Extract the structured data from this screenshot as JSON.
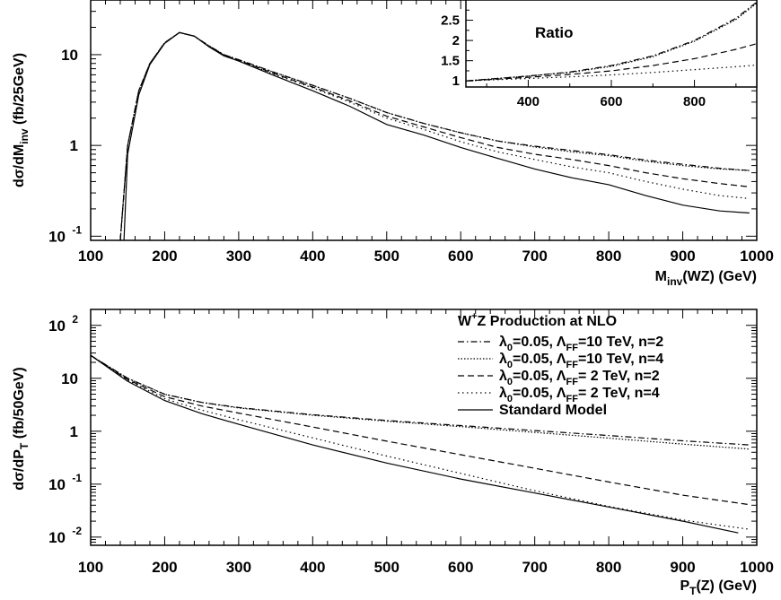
{
  "chart_data": [
    {
      "type": "line",
      "scale": {
        "x": "linear",
        "y": "log"
      },
      "xlim": [
        100,
        1000
      ],
      "ylim": [
        0.09,
        40
      ],
      "xlabel": "M_inv(WZ)  (GeV)",
      "ylabel": "dσ/dM_inv  (fb/25GeV)",
      "xlabel_parts": {
        "main": "M",
        "sub": "inv",
        "rest": "(WZ)  (GeV)"
      },
      "ylabel_parts": {
        "main": "dσ/dM",
        "sub": "inv",
        "rest": "  (fb/25GeV)"
      },
      "x_ticks": [
        "100",
        "200",
        "300",
        "400",
        "500",
        "600",
        "700",
        "800",
        "900",
        "1000"
      ],
      "y_ticks": [
        {
          "value": 0.1,
          "base": "10",
          "exp": "-1"
        },
        {
          "value": 1,
          "base": "1",
          "exp": ""
        },
        {
          "value": 10,
          "base": "10",
          "exp": ""
        }
      ],
      "series": [
        {
          "style": "dashdot",
          "x": [
            140,
            150,
            165,
            180,
            200,
            220,
            240,
            260,
            280,
            300,
            350,
            400,
            450,
            500,
            550,
            600,
            650,
            700,
            750,
            800,
            850,
            900,
            950,
            990
          ],
          "y": [
            0.09,
            1.0,
            4.0,
            8.0,
            13.5,
            17.5,
            16.0,
            12.5,
            10.0,
            8.8,
            6.3,
            4.6,
            3.3,
            2.3,
            1.75,
            1.38,
            1.12,
            0.98,
            0.88,
            0.79,
            0.69,
            0.62,
            0.56,
            0.53
          ]
        },
        {
          "style": "dotted",
          "x": [
            140,
            150,
            165,
            180,
            200,
            220,
            240,
            260,
            280,
            300,
            350,
            400,
            450,
            500,
            550,
            600,
            650,
            700,
            750,
            800,
            850,
            900,
            950,
            990
          ],
          "y": [
            0.09,
            1.0,
            4.0,
            8.0,
            13.5,
            17.5,
            16.0,
            12.5,
            10.0,
            8.8,
            6.3,
            4.6,
            3.3,
            2.3,
            1.75,
            1.38,
            1.12,
            0.96,
            0.85,
            0.77,
            0.67,
            0.6,
            0.55,
            0.53
          ]
        },
        {
          "style": "dashed",
          "x": [
            140,
            150,
            165,
            180,
            200,
            220,
            240,
            260,
            280,
            300,
            350,
            400,
            450,
            500,
            550,
            600,
            650,
            700,
            750,
            800,
            850,
            900,
            950,
            990
          ],
          "y": [
            0.09,
            1.0,
            4.0,
            8.0,
            13.5,
            17.5,
            16.0,
            12.4,
            9.9,
            8.7,
            6.1,
            4.4,
            3.1,
            2.1,
            1.6,
            1.22,
            0.95,
            0.8,
            0.7,
            0.6,
            0.5,
            0.43,
            0.38,
            0.35
          ]
        },
        {
          "style": "sparse-dotted",
          "x": [
            140,
            150,
            165,
            180,
            200,
            220,
            240,
            260,
            280,
            300,
            350,
            400,
            450,
            500,
            550,
            600,
            650,
            700,
            750,
            800,
            850,
            900,
            950,
            990
          ],
          "y": [
            0.09,
            1.0,
            4.0,
            8.0,
            13.5,
            17.5,
            16.0,
            12.3,
            9.8,
            8.6,
            6.0,
            4.3,
            3.0,
            2.0,
            1.5,
            1.1,
            0.85,
            0.7,
            0.58,
            0.5,
            0.4,
            0.33,
            0.28,
            0.26
          ]
        },
        {
          "style": "solid",
          "x": [
            145,
            150,
            165,
            180,
            200,
            220,
            240,
            260,
            280,
            300,
            350,
            400,
            450,
            500,
            550,
            600,
            650,
            700,
            750,
            800,
            850,
            900,
            950,
            990
          ],
          "y": [
            0.09,
            0.8,
            3.6,
            7.8,
            13.3,
            17.5,
            16.0,
            12.2,
            9.7,
            8.5,
            5.8,
            4.0,
            2.7,
            1.7,
            1.3,
            0.95,
            0.72,
            0.55,
            0.44,
            0.37,
            0.28,
            0.22,
            0.19,
            0.18
          ]
        }
      ]
    },
    {
      "type": "line",
      "role": "inset",
      "title": "Ratio",
      "scale": {
        "x": "linear",
        "y": "linear"
      },
      "xlim": [
        250,
        950
      ],
      "ylim": [
        0.85,
        3.0
      ],
      "x_ticks": [
        "400",
        "600",
        "800"
      ],
      "y_ticks": [
        "1",
        "1.5",
        "2",
        "2.5"
      ],
      "series": [
        {
          "style": "dashdot",
          "x": [
            250,
            300,
            400,
            500,
            600,
            700,
            800,
            900,
            950
          ],
          "y": [
            1.0,
            1.04,
            1.12,
            1.22,
            1.38,
            1.62,
            2.0,
            2.55,
            2.95
          ]
        },
        {
          "style": "dotted",
          "x": [
            250,
            300,
            400,
            500,
            600,
            700,
            800,
            900,
            950
          ],
          "y": [
            1.0,
            1.04,
            1.12,
            1.21,
            1.36,
            1.6,
            1.98,
            2.52,
            2.92
          ]
        },
        {
          "style": "dashed",
          "x": [
            250,
            300,
            400,
            500,
            600,
            700,
            800,
            900,
            950
          ],
          "y": [
            1.0,
            1.03,
            1.09,
            1.16,
            1.25,
            1.38,
            1.55,
            1.78,
            1.92
          ]
        },
        {
          "style": "sparse-dotted",
          "x": [
            250,
            300,
            400,
            500,
            600,
            700,
            800,
            900,
            950
          ],
          "y": [
            1.0,
            1.02,
            1.06,
            1.1,
            1.15,
            1.21,
            1.28,
            1.35,
            1.39
          ]
        }
      ]
    },
    {
      "type": "line",
      "scale": {
        "x": "linear",
        "y": "log"
      },
      "xlim": [
        100,
        1000
      ],
      "ylim": [
        0.007,
        200
      ],
      "xlabel": "P_T(Z)  (GeV)",
      "ylabel": "dσ/dP_T  (fb/50GeV)",
      "xlabel_parts": {
        "main": "P",
        "sub": "T",
        "rest": "(Z)  (GeV)"
      },
      "ylabel_parts": {
        "main": "dσ/dP",
        "sub": "T",
        "rest": "  (fb/50GeV)"
      },
      "x_ticks": [
        "100",
        "200",
        "300",
        "400",
        "500",
        "600",
        "700",
        "800",
        "900",
        "1000"
      ],
      "y_ticks": [
        {
          "value": 0.01,
          "base": "10",
          "exp": "-2"
        },
        {
          "value": 0.1,
          "base": "10",
          "exp": "-1"
        },
        {
          "value": 1,
          "base": "1",
          "exp": ""
        },
        {
          "value": 10,
          "base": "10",
          "exp": ""
        },
        {
          "value": 100,
          "base": "10",
          "exp": "2"
        }
      ],
      "legend": {
        "title": "W⁺Z Production at NLO",
        "title_parts": {
          "main": "W",
          "sup": "+",
          "rest": "Z Production at NLO"
        },
        "placement": "top-right",
        "entries": [
          {
            "style": "dashdot",
            "label": "λ0=0.05, ΛFF=10 TeV, n=2",
            "parts": {
              "a": "λ",
              "a_sub": "0",
              "b": "=0.05, Λ",
              "b_sub": "FF",
              "c": "=10 TeV, n=2"
            }
          },
          {
            "style": "dotted",
            "label": "λ0=0.05, ΛFF=10 TeV, n=4",
            "parts": {
              "a": "λ",
              "a_sub": "0",
              "b": "=0.05, Λ",
              "b_sub": "FF",
              "c": "=10 TeV, n=4"
            }
          },
          {
            "style": "dashed",
            "label": "λ0=0.05, ΛFF= 2 TeV, n=2",
            "parts": {
              "a": "λ",
              "a_sub": "0",
              "b": "=0.05, Λ",
              "b_sub": "FF",
              "c": "= 2 TeV, n=2"
            }
          },
          {
            "style": "sparse-dotted",
            "label": "λ0=0.05, ΛFF= 2 TeV, n=4",
            "parts": {
              "a": "λ",
              "a_sub": "0",
              "b": "=0.05, Λ",
              "b_sub": "FF",
              "c": "= 2 TeV, n=4"
            }
          },
          {
            "style": "solid",
            "label": "Standard Model",
            "parts": {
              "a": "Standard Model",
              "a_sub": "",
              "b": "",
              "b_sub": "",
              "c": ""
            }
          }
        ]
      },
      "series": [
        {
          "style": "dashdot",
          "x": [
            100,
            150,
            200,
            250,
            300,
            400,
            500,
            600,
            700,
            800,
            900,
            990
          ],
          "y": [
            27,
            10,
            5.0,
            3.5,
            2.8,
            2.05,
            1.6,
            1.28,
            1.03,
            0.83,
            0.66,
            0.55
          ]
        },
        {
          "style": "dotted",
          "x": [
            100,
            150,
            200,
            250,
            300,
            400,
            500,
            600,
            700,
            800,
            900,
            990
          ],
          "y": [
            27,
            10,
            5.0,
            3.5,
            2.75,
            2.0,
            1.55,
            1.22,
            0.95,
            0.74,
            0.57,
            0.46
          ]
        },
        {
          "style": "dashed",
          "x": [
            100,
            150,
            200,
            250,
            300,
            400,
            500,
            600,
            700,
            800,
            900,
            990
          ],
          "y": [
            27,
            9.5,
            4.5,
            3.0,
            2.2,
            1.2,
            0.65,
            0.36,
            0.2,
            0.11,
            0.062,
            0.041
          ]
        },
        {
          "style": "sparse-dotted",
          "x": [
            100,
            150,
            200,
            250,
            300,
            400,
            500,
            600,
            700,
            800,
            900,
            990
          ],
          "y": [
            27,
            9.2,
            4.1,
            2.5,
            1.65,
            0.75,
            0.34,
            0.16,
            0.075,
            0.038,
            0.021,
            0.014
          ]
        },
        {
          "style": "solid",
          "x": [
            100,
            150,
            200,
            250,
            300,
            400,
            500,
            600,
            700,
            800,
            900,
            975
          ],
          "y": [
            27,
            8.8,
            3.8,
            2.15,
            1.35,
            0.55,
            0.25,
            0.125,
            0.068,
            0.037,
            0.02,
            0.012
          ]
        }
      ]
    }
  ]
}
